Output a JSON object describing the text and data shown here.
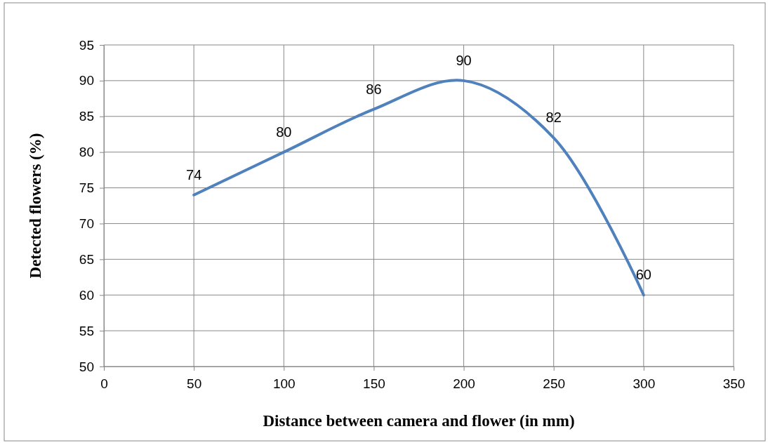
{
  "chart_data": {
    "type": "line",
    "xlabel": "Distance between camera and flower (in mm)",
    "ylabel": "Detected flowers (%)",
    "x": [
      50,
      100,
      150,
      200,
      250,
      300
    ],
    "series": [
      {
        "color": "#4f81bd",
        "values": [
          74,
          80,
          86,
          90,
          82,
          60
        ]
      }
    ],
    "xlim": [
      0,
      350
    ],
    "xticks": [
      0,
      50,
      100,
      150,
      200,
      250,
      300,
      350
    ],
    "ylim": [
      50,
      95
    ],
    "yticks": [
      50,
      55,
      60,
      65,
      70,
      75,
      80,
      85,
      90,
      95
    ],
    "grid": true,
    "data_labels": true
  }
}
